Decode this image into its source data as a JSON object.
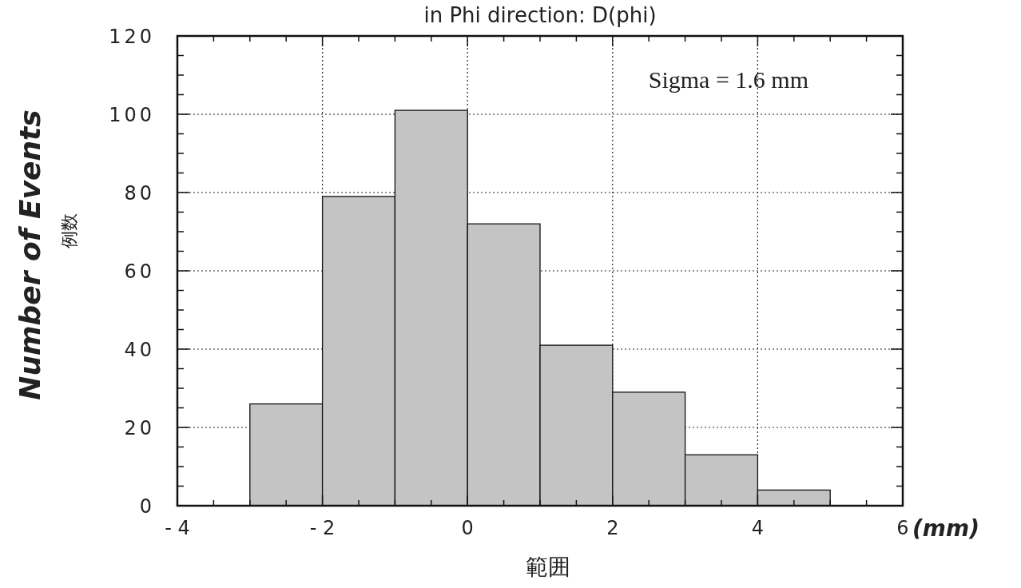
{
  "chart_data": {
    "type": "histogram",
    "title": "in Phi direction: D(phi)",
    "xlabel": "範囲",
    "ylabel": "Number of Events\n例数",
    "annotations": [
      "Sigma = 1.6 mm",
      "(mm)"
    ],
    "bins": [
      -4,
      -3,
      -2,
      -1,
      0,
      1,
      2,
      3,
      4,
      5,
      6
    ],
    "values": [
      0,
      26,
      79,
      101,
      72,
      41,
      29,
      13,
      4,
      0
    ],
    "color": "#c4c4c4",
    "xlim": [
      -4,
      6
    ],
    "ylim": [
      0,
      120
    ],
    "xticks": [
      {
        "value": -4,
        "label": "- 4"
      },
      {
        "value": -3.5,
        "label": null
      },
      {
        "value": -3,
        "label": null
      },
      {
        "value": -2.5,
        "label": null
      },
      {
        "value": -2,
        "label": "- 2"
      },
      {
        "value": -1.5,
        "label": null
      },
      {
        "value": -1,
        "label": null
      },
      {
        "value": -0.5,
        "label": null
      },
      0,
      {
        "value": 0.5,
        "label": null
      },
      {
        "value": 1,
        "label": null
      },
      {
        "value": 1.5,
        "label": null
      },
      2,
      {
        "value": 2.5,
        "label": null
      },
      {
        "value": 3,
        "label": null
      },
      {
        "value": 3.5,
        "label": null
      },
      4,
      {
        "value": 4.5,
        "label": null
      },
      {
        "value": 5,
        "label": null
      },
      {
        "value": 5.5,
        "label": null
      },
      6
    ],
    "yticks": [
      0,
      {
        "value": 5,
        "label": null
      },
      {
        "value": 10,
        "label": null
      },
      {
        "value": 15,
        "label": null
      },
      20,
      {
        "value": 25,
        "label": null
      },
      {
        "value": 30,
        "label": null
      },
      {
        "value": 35,
        "label": null
      },
      40,
      {
        "value": 45,
        "label": null
      },
      {
        "value": 50,
        "label": null
      },
      {
        "value": 55,
        "label": null
      },
      60,
      {
        "value": 65,
        "label": null
      },
      {
        "value": 70,
        "label": null
      },
      {
        "value": 75,
        "label": null
      },
      80,
      {
        "value": 85,
        "label": null
      },
      {
        "value": 90,
        "label": null
      },
      {
        "value": 95,
        "label": null
      },
      100,
      {
        "value": 105,
        "label": null
      },
      {
        "value": 110,
        "label": null
      },
      {
        "value": 115,
        "label": null
      },
      120
    ],
    "grid": true
  }
}
